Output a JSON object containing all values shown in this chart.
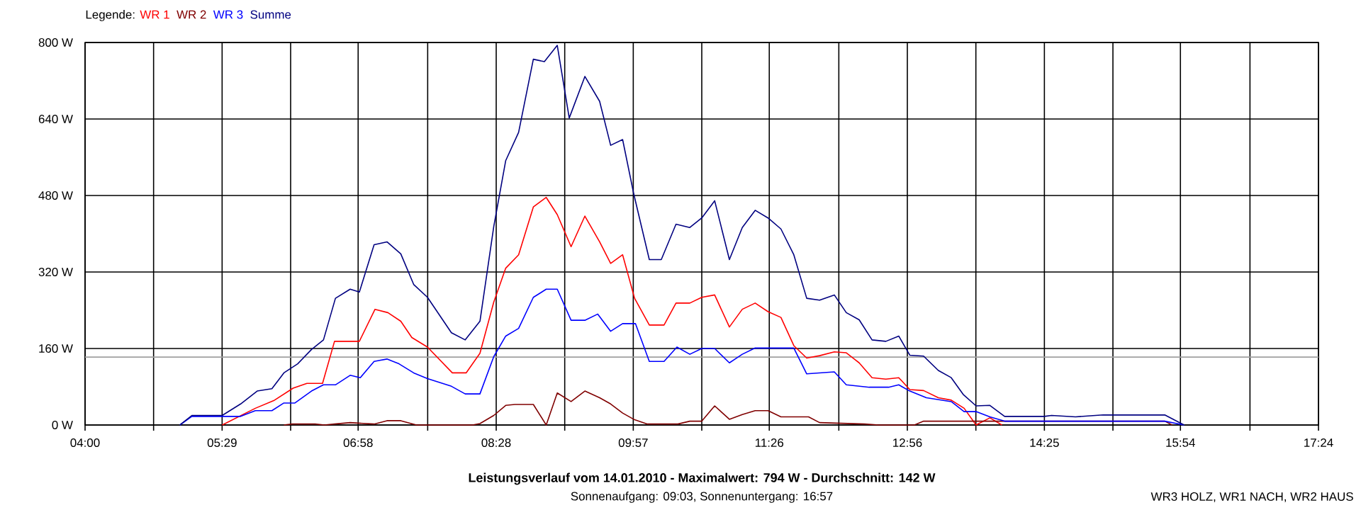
{
  "chart_data": {
    "type": "line",
    "title": "Leistungsverlauf vom 14.01.2010 - Maximalwert: 794 W - Durchschnitt: 142 W",
    "subtitle": "Sonnenaufgang: 09:03, Sonnenuntergang: 16:57",
    "annotations": [
      "WR3 HOLZ, WR1 NACH, WR2 HAUS"
    ],
    "legend_title": "Legende:",
    "legend": "top left",
    "grid": true,
    "xlim": [
      4,
      17.4
    ],
    "ylim": [
      0,
      800
    ],
    "xticks": [
      {
        "value": 4,
        "label": "04:00"
      },
      {
        "value": 4.7444,
        "label": null
      },
      {
        "value": 5.4889,
        "label": "05:29"
      },
      {
        "value": 6.2333,
        "label": null
      },
      {
        "value": 6.9667,
        "label": "06:58"
      },
      {
        "value": 7.7222,
        "label": null
      },
      {
        "value": 8.4667,
        "label": "08:28"
      },
      {
        "value": 9.2111,
        "label": null
      },
      {
        "value": 9.9556,
        "label": "09:57"
      },
      {
        "value": 10.7,
        "label": null
      },
      {
        "value": 11.4333,
        "label": "11:26"
      },
      {
        "value": 12.1889,
        "label": null
      },
      {
        "value": 12.9333,
        "label": "12:56"
      },
      {
        "value": 13.6778,
        "label": null
      },
      {
        "value": 14.4222,
        "label": "14:25"
      },
      {
        "value": 15.1667,
        "label": null
      },
      {
        "value": 15.9,
        "label": "15:54"
      },
      {
        "value": 16.6556,
        "label": null
      },
      {
        "value": 17.4,
        "label": "17:24"
      }
    ],
    "yticks": [
      {
        "value": 0,
        "label": "0 W"
      },
      {
        "value": 160,
        "label": "160 W"
      },
      {
        "value": 320,
        "label": "320 W"
      },
      {
        "value": 480,
        "label": "480 W"
      },
      {
        "value": 640,
        "label": "640 W"
      },
      {
        "value": 800,
        "label": "800 W"
      }
    ],
    "ref_lines": [
      {
        "axis": "y",
        "value": 142,
        "color": "#a0a0a0"
      }
    ],
    "series": [
      {
        "name": "WR 1",
        "color": "#ff0000",
        "x": [
          5.49,
          5.85,
          6.05,
          6.26,
          6.41,
          6.58,
          6.71,
          6.98,
          7.15,
          7.29,
          7.43,
          7.55,
          7.72,
          7.99,
          8.14,
          8.29,
          8.44,
          8.57,
          8.71,
          8.87,
          9.01,
          9.13,
          9.28,
          9.43,
          9.59,
          9.71,
          9.84,
          9.97,
          10.13,
          10.29,
          10.42,
          10.57,
          10.7,
          10.84,
          11.0,
          11.14,
          11.28,
          11.42,
          11.56,
          11.7,
          11.84,
          11.98,
          12.14,
          12.27,
          12.41,
          12.55,
          12.7,
          12.84,
          12.96,
          13.11,
          13.27,
          13.41,
          13.55,
          13.68,
          13.83,
          13.96
        ],
        "values": [
          0,
          35,
          51,
          77,
          87,
          87,
          175,
          175,
          242,
          235,
          217,
          183,
          163,
          109,
          109,
          150,
          257,
          328,
          356,
          456,
          476,
          440,
          373,
          437,
          383,
          338,
          356,
          265,
          209,
          209,
          255,
          255,
          267,
          272,
          205,
          242,
          255,
          237,
          225,
          166,
          140,
          145,
          153,
          151,
          130,
          99,
          96,
          99,
          74,
          72,
          57,
          52,
          35,
          0,
          15,
          0
        ]
      },
      {
        "name": "WR 2",
        "color": "#800000",
        "x": [
          6.16,
          6.25,
          6.5,
          6.6,
          6.71,
          6.88,
          7.14,
          7.28,
          7.43,
          7.6,
          8.21,
          8.29,
          8.44,
          8.57,
          8.67,
          8.87,
          9.01,
          9.13,
          9.28,
          9.43,
          9.59,
          9.71,
          9.84,
          9.97,
          10.11,
          10.44,
          10.57,
          10.7,
          10.84,
          11.0,
          11.14,
          11.28,
          11.42,
          11.56,
          11.86,
          11.98,
          12.47,
          12.62,
          13.01,
          13.11,
          15.73,
          15.81
        ],
        "values": [
          0,
          2,
          2,
          0,
          2,
          5,
          2,
          9,
          9,
          0,
          0,
          3,
          20,
          41,
          43,
          43,
          0,
          67,
          49,
          71,
          57,
          44,
          25,
          11,
          2,
          2,
          8,
          8,
          40,
          12,
          22,
          30,
          30,
          17,
          17,
          5,
          2,
          0,
          0,
          8,
          8,
          0
        ]
      },
      {
        "name": "WR 3",
        "color": "#0000ff",
        "x": [
          5.03,
          5.16,
          5.49,
          5.69,
          5.85,
          6.03,
          6.16,
          6.28,
          6.46,
          6.59,
          6.72,
          6.88,
          6.99,
          7.14,
          7.28,
          7.41,
          7.57,
          7.72,
          7.98,
          8.13,
          8.29,
          8.44,
          8.57,
          8.71,
          8.87,
          9.01,
          9.13,
          9.28,
          9.43,
          9.57,
          9.71,
          9.84,
          9.98,
          10.13,
          10.29,
          10.43,
          10.57,
          10.7,
          10.84,
          11.0,
          11.14,
          11.28,
          11.7,
          11.84,
          12.14,
          12.27,
          12.52,
          12.73,
          12.84,
          12.96,
          13.14,
          13.41,
          13.55,
          13.68,
          13.83,
          13.99,
          15.73,
          15.94
        ],
        "values": [
          0,
          18,
          18,
          18,
          30,
          30,
          46,
          46,
          71,
          84,
          84,
          104,
          99,
          133,
          138,
          128,
          109,
          97,
          81,
          65,
          65,
          143,
          186,
          202,
          267,
          284,
          284,
          219,
          219,
          232,
          196,
          212,
          212,
          133,
          133,
          163,
          148,
          160,
          160,
          130,
          148,
          161,
          161,
          107,
          111,
          84,
          79,
          79,
          84,
          71,
          57,
          49,
          28,
          28,
          17,
          8,
          8,
          0
        ]
      },
      {
        "name": "Summe",
        "color": "#000080",
        "x": [
          5.03,
          5.16,
          5.49,
          5.69,
          5.87,
          6.03,
          6.16,
          6.31,
          6.46,
          6.59,
          6.72,
          6.88,
          6.98,
          7.14,
          7.28,
          7.43,
          7.57,
          7.72,
          7.98,
          8.13,
          8.29,
          8.44,
          8.57,
          8.71,
          8.87,
          8.99,
          9.13,
          9.26,
          9.43,
          9.59,
          9.71,
          9.84,
          9.96,
          10.13,
          10.26,
          10.42,
          10.57,
          10.7,
          10.84,
          11.0,
          11.14,
          11.28,
          11.42,
          11.56,
          11.7,
          11.84,
          11.98,
          12.14,
          12.27,
          12.41,
          12.55,
          12.7,
          12.84,
          12.96,
          13.11,
          13.27,
          13.41,
          13.54,
          13.68,
          13.83,
          13.99,
          14.42,
          14.5,
          14.76,
          15.06,
          15.73,
          15.94
        ],
        "values": [
          0,
          20,
          20,
          44,
          71,
          76,
          109,
          128,
          158,
          178,
          265,
          284,
          278,
          377,
          383,
          358,
          294,
          267,
          193,
          178,
          217,
          415,
          553,
          612,
          765,
          760,
          794,
          642,
          729,
          677,
          585,
          597,
          484,
          346,
          346,
          420,
          413,
          433,
          469,
          346,
          413,
          449,
          433,
          410,
          356,
          265,
          261,
          272,
          235,
          220,
          178,
          175,
          186,
          146,
          144,
          114,
          99,
          64,
          40,
          41,
          18,
          18,
          20,
          17,
          21,
          21,
          0
        ]
      }
    ]
  }
}
